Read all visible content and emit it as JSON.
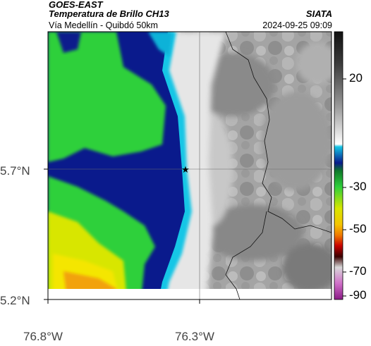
{
  "header": {
    "satellite": "GOES-EAST",
    "product": "Temperatura de Brillo CH13",
    "subtitle": "Vía Medellín - Quibdó 50km",
    "organization": "SIATA",
    "timestamp": "2024-09-25 09:09"
  },
  "axes": {
    "lat_ticks": [
      "5.7°N",
      "5.2°N"
    ],
    "lon_ticks": [
      "76.8°W",
      "76.3°W"
    ]
  },
  "colorbar": {
    "labels": [
      "20",
      "-30",
      "-50",
      "-70",
      "-90"
    ]
  },
  "colors": {
    "cold_cloud_blue": "#0a1a8c",
    "cyan": "#19c6e6",
    "green": "#2fd03b",
    "yellow": "#f4e600",
    "orange": "#f2a20d",
    "land_gray": "#a0a0a0"
  },
  "marker": {
    "icon": "star-icon"
  }
}
